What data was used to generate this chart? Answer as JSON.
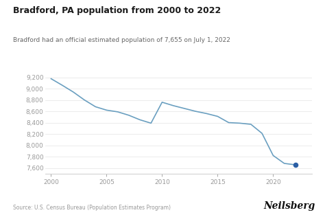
{
  "title": "Bradford, PA population from 2000 to 2022",
  "subtitle": "Bradford had an official estimated population of 7,655 on July 1, 2022",
  "source": "Source: U.S. Census Bureau (Population Estimates Program)",
  "brand": "Neilsberg",
  "years": [
    2000,
    2001,
    2002,
    2003,
    2004,
    2005,
    2006,
    2007,
    2008,
    2009,
    2010,
    2011,
    2012,
    2013,
    2014,
    2015,
    2016,
    2017,
    2018,
    2019,
    2020,
    2021,
    2022
  ],
  "population": [
    9175,
    9060,
    8940,
    8800,
    8680,
    8620,
    8590,
    8530,
    8450,
    8390,
    8760,
    8700,
    8650,
    8600,
    8560,
    8510,
    8400,
    8390,
    8370,
    8210,
    7820,
    7680,
    7655
  ],
  "line_color": "#6a9fc0",
  "marker_color": "#2b5fa5",
  "background_color": "#ffffff",
  "grid_color": "#e8e8e8",
  "axis_color": "#cccccc",
  "tick_label_color": "#999999",
  "title_color": "#1a1a1a",
  "subtitle_color": "#666666",
  "source_color": "#999999",
  "brand_color": "#111111",
  "xlim": [
    1999.5,
    2023.5
  ],
  "ylim": [
    7500,
    9300
  ],
  "yticks": [
    7600,
    7800,
    8000,
    8200,
    8400,
    8600,
    8800,
    9000,
    9200
  ],
  "xticks": [
    2000,
    2005,
    2010,
    2015,
    2020
  ]
}
